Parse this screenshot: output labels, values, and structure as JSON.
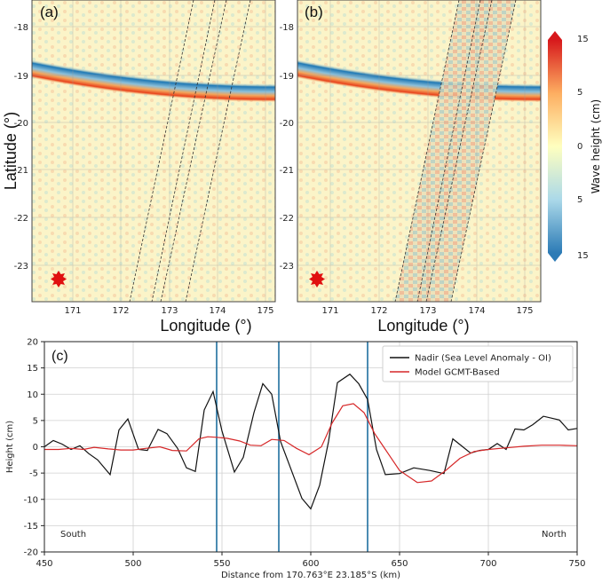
{
  "map_panels": {
    "panel_a_label": "(a)",
    "panel_b_label": "(b)",
    "ylabel": "Latitude (°)",
    "xlabel": "Longitude (°)",
    "lat_ticks": [
      "-18",
      "-19",
      "-20",
      "-21",
      "-22",
      "-23"
    ],
    "lon_ticks": [
      "171",
      "172",
      "173",
      "174",
      "175"
    ],
    "colorbar_label": "Wave height (cm)",
    "colorbar_ticks": [
      "15",
      "5",
      "0",
      "5",
      "15"
    ],
    "colormap": [
      "#2c7bb6",
      "#abd9e9",
      "#ffffbf",
      "#fdae61",
      "#d7191c"
    ],
    "epicenter_color": "#e01010"
  },
  "chart_data": {
    "type": "line",
    "panel_label": "(c)",
    "xlabel": "Distance from 170.763°E 23.185°S (km)",
    "ylabel": "Height (cm)",
    "xlim": [
      450,
      750
    ],
    "ylim": [
      -20,
      20
    ],
    "xticks": [
      450,
      500,
      550,
      600,
      650,
      700,
      750
    ],
    "yticks": [
      -20,
      -15,
      -10,
      -5,
      0,
      5,
      10,
      15,
      20
    ],
    "grid": true,
    "legend_position": "top-right",
    "annotations": {
      "south": "South",
      "north": "North"
    },
    "vertical_lines": [
      547,
      582,
      632
    ],
    "vertical_line_color": "#1f6f9f",
    "series": [
      {
        "name": "Nadir (Sea Level Anomaly - OI)",
        "color": "#111111",
        "x": [
          450,
          455,
          460,
          465,
          470,
          475,
          480,
          487,
          492,
          497,
          503,
          508,
          514,
          519,
          525,
          530,
          535,
          540,
          545,
          550,
          557,
          562,
          568,
          573,
          578,
          583,
          588,
          595,
          600,
          605,
          610,
          615,
          622,
          627,
          632,
          637,
          642,
          650,
          658,
          667,
          675,
          680,
          690,
          695,
          700,
          705,
          710,
          715,
          720,
          725,
          731,
          740,
          745,
          750
        ],
        "y": [
          0,
          1.2,
          0.5,
          -0.5,
          0.2,
          -1.3,
          -2.5,
          -5.3,
          3.2,
          5.3,
          -0.5,
          -0.7,
          3.3,
          2.5,
          -0.3,
          -4,
          -4.7,
          7,
          10.5,
          3,
          -4.8,
          -2,
          6.5,
          12,
          10,
          1,
          -3.5,
          -9.8,
          -11.8,
          -7.3,
          1,
          12.2,
          13.8,
          12,
          9,
          -0.5,
          -5.3,
          -5.1,
          -4,
          -4.5,
          -5.1,
          1.5,
          -1.2,
          -0.7,
          -0.5,
          0.6,
          -0.5,
          3.4,
          3.2,
          4.2,
          5.8,
          5.1,
          3.2,
          3.5
        ]
      },
      {
        "name": "Model GCMT-Based",
        "color": "#d62728",
        "x": [
          450,
          458,
          465,
          472,
          478,
          486,
          493,
          500,
          507,
          515,
          522,
          530,
          537,
          542,
          547,
          553,
          560,
          566,
          572,
          578,
          585,
          592,
          599,
          606,
          612,
          618,
          624,
          630,
          636,
          642,
          650,
          660,
          668,
          676,
          684,
          692,
          700,
          710,
          720,
          730,
          740,
          750
        ],
        "y": [
          -0.5,
          -0.5,
          -0.3,
          -0.5,
          -0.1,
          -0.4,
          -0.6,
          -0.6,
          -0.3,
          0,
          -0.7,
          -0.8,
          1.5,
          1.9,
          1.8,
          1.6,
          1.1,
          0.3,
          0.2,
          1.4,
          1.2,
          -0.3,
          -1.5,
          0,
          4.5,
          7.8,
          8.2,
          6.5,
          2.5,
          -0.5,
          -4.5,
          -6.8,
          -6.5,
          -4.5,
          -2.2,
          -0.9,
          -0.5,
          -0.2,
          0.1,
          0.3,
          0.3,
          0.2
        ]
      }
    ]
  }
}
